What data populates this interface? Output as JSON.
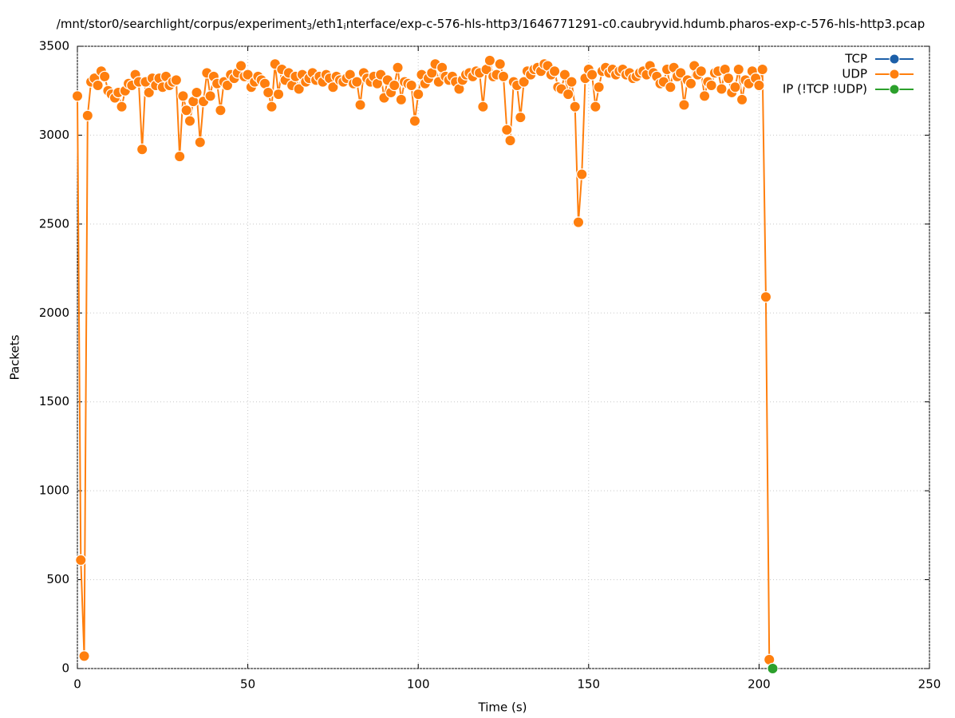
{
  "chart_data": {
    "type": "line",
    "title": [
      "/mnt/stor0/searchlight/corpus/experiment",
      "3",
      "/eth1",
      "i",
      "nterface/exp-c-576-hls-http3/1646771291-c0.caubryvid.hdumb.pharos-exp-c-576-hls-http3.pcap"
    ],
    "xlabel": "Time (s)",
    "ylabel": "Packets",
    "xlim": [
      0,
      250
    ],
    "xticks": [
      0,
      50,
      100,
      150,
      200,
      250
    ],
    "ylim": [
      0,
      3500
    ],
    "yticks": [
      0,
      500,
      1000,
      1500,
      2000,
      2500,
      3000,
      3500
    ],
    "grid": true,
    "legend": "top-right",
    "x": [
      0,
      1,
      2,
      3,
      4,
      5,
      6,
      7,
      8,
      9,
      10,
      11,
      12,
      13,
      14,
      15,
      16,
      17,
      18,
      19,
      20,
      21,
      22,
      23,
      24,
      25,
      26,
      27,
      28,
      29,
      30,
      31,
      32,
      33,
      34,
      35,
      36,
      37,
      38,
      39,
      40,
      41,
      42,
      43,
      44,
      45,
      46,
      47,
      48,
      49,
      50,
      51,
      52,
      53,
      54,
      55,
      56,
      57,
      58,
      59,
      60,
      61,
      62,
      63,
      64,
      65,
      66,
      67,
      68,
      69,
      70,
      71,
      72,
      73,
      74,
      75,
      76,
      77,
      78,
      79,
      80,
      81,
      82,
      83,
      84,
      85,
      86,
      87,
      88,
      89,
      90,
      91,
      92,
      93,
      94,
      95,
      96,
      97,
      98,
      99,
      100,
      101,
      102,
      103,
      104,
      105,
      106,
      107,
      108,
      109,
      110,
      111,
      112,
      113,
      114,
      115,
      116,
      117,
      118,
      119,
      120,
      121,
      122,
      123,
      124,
      125,
      126,
      127,
      128,
      129,
      130,
      131,
      132,
      133,
      134,
      135,
      136,
      137,
      138,
      139,
      140,
      141,
      142,
      143,
      144,
      145,
      146,
      147,
      148,
      149,
      150,
      151,
      152,
      153,
      154,
      155,
      156,
      157,
      158,
      159,
      160,
      161,
      162,
      163,
      164,
      165,
      166,
      167,
      168,
      169,
      170,
      171,
      172,
      173,
      174,
      175,
      176,
      177,
      178,
      179,
      180,
      181,
      182,
      183,
      184,
      185,
      186,
      187,
      188,
      189,
      190,
      191,
      192,
      193,
      194,
      195,
      196,
      197,
      198,
      199,
      200,
      201,
      202,
      203,
      204
    ],
    "series": [
      {
        "name": "TCP",
        "color": "#1c5fa8",
        "values": [
          null,
          null,
          null,
          null,
          null,
          null,
          null,
          null,
          null,
          null,
          null,
          null,
          null,
          null,
          null,
          null,
          null,
          null,
          null,
          null,
          null,
          null,
          null,
          null,
          null,
          null,
          null,
          null,
          null,
          null,
          null,
          null,
          null,
          null,
          null,
          null,
          null,
          null,
          null,
          null,
          null,
          null,
          null,
          null,
          null,
          null,
          null,
          null,
          null,
          null,
          null,
          null,
          null,
          null,
          null,
          null,
          null,
          null,
          null,
          null,
          null,
          null,
          null,
          null,
          null,
          null,
          null,
          null,
          null,
          null,
          null,
          null,
          null,
          null,
          null,
          null,
          null,
          null,
          null,
          null,
          null,
          null,
          null,
          null,
          null,
          null,
          null,
          null,
          null,
          null,
          null,
          null,
          null,
          null,
          null,
          null,
          null,
          null,
          null,
          null,
          null,
          null,
          null,
          null,
          null,
          null,
          null,
          null,
          null,
          null,
          null,
          null,
          null,
          null,
          null,
          null,
          null,
          null,
          null,
          null,
          null,
          null,
          null,
          null,
          null,
          null,
          null,
          null,
          null,
          null,
          null,
          null,
          null,
          null,
          null,
          null,
          null,
          null,
          null,
          null,
          null,
          null,
          null,
          null,
          null,
          null,
          null,
          null,
          null,
          null,
          null,
          null,
          null,
          null,
          null,
          null,
          null,
          null,
          null,
          null,
          null,
          null,
          null,
          null,
          null,
          null,
          null,
          null,
          null,
          null,
          null,
          null,
          null,
          null,
          null,
          null,
          null,
          null,
          null,
          null,
          null,
          null,
          null,
          null,
          null,
          null,
          null,
          null,
          null,
          null,
          null,
          null,
          null,
          null,
          null,
          null,
          null,
          null,
          null,
          null,
          null,
          null,
          null,
          null,
          null
        ]
      },
      {
        "name": "UDP",
        "color": "#ff7f0e",
        "values": [
          3220,
          610,
          70,
          3110,
          3300,
          3320,
          3280,
          3360,
          3330,
          3250,
          3230,
          3210,
          3240,
          3160,
          3250,
          3290,
          3280,
          3340,
          3300,
          2920,
          3300,
          3240,
          3320,
          3280,
          3320,
          3270,
          3330,
          3280,
          3300,
          3310,
          2880,
          3220,
          3140,
          3080,
          3190,
          3240,
          2960,
          3190,
          3350,
          3220,
          3330,
          3290,
          3140,
          3300,
          3280,
          3340,
          3320,
          3350,
          3390,
          3330,
          3340,
          3270,
          3300,
          3330,
          3310,
          3290,
          3240,
          3160,
          3400,
          3230,
          3370,
          3310,
          3350,
          3280,
          3330,
          3260,
          3340,
          3300,
          3320,
          3350,
          3310,
          3330,
          3300,
          3340,
          3320,
          3270,
          3330,
          3310,
          3300,
          3320,
          3340,
          3290,
          3300,
          3170,
          3350,
          3320,
          3300,
          3330,
          3290,
          3340,
          3210,
          3310,
          3240,
          3280,
          3380,
          3200,
          3300,
          3290,
          3280,
          3080,
          3230,
          3340,
          3290,
          3320,
          3350,
          3400,
          3300,
          3380,
          3330,
          3310,
          3330,
          3300,
          3260,
          3310,
          3340,
          3350,
          3330,
          3360,
          3350,
          3160,
          3370,
          3420,
          3330,
          3340,
          3400,
          3330,
          3030,
          2970,
          3300,
          3280,
          3100,
          3300,
          3360,
          3340,
          3370,
          3380,
          3360,
          3400,
          3390,
          3340,
          3360,
          3270,
          3260,
          3340,
          3230,
          3300,
          3160,
          2510,
          2780,
          3320,
          3370,
          3340,
          3160,
          3270,
          3360,
          3380,
          3350,
          3370,
          3340,
          3360,
          3370,
          3340,
          3350,
          3320,
          3330,
          3350,
          3360,
          3340,
          3390,
          3350,
          3330,
          3290,
          3300,
          3370,
          3270,
          3380,
          3330,
          3350,
          3170,
          3310,
          3290,
          3390,
          3340,
          3360,
          3220,
          3300,
          3280,
          3350,
          3360,
          3260,
          3370,
          3320,
          3240,
          3270,
          3370,
          3200,
          3310,
          3290,
          3360,
          3320,
          3280,
          3370,
          2090,
          50,
          null
        ]
      },
      {
        "name": "IP (!TCP  !UDP)",
        "color": "#2ca02c",
        "values": [
          null,
          null,
          null,
          null,
          null,
          null,
          null,
          null,
          null,
          null,
          null,
          null,
          null,
          null,
          null,
          null,
          null,
          null,
          null,
          null,
          null,
          null,
          null,
          null,
          null,
          null,
          null,
          null,
          null,
          null,
          null,
          null,
          null,
          null,
          null,
          null,
          null,
          null,
          null,
          null,
          null,
          null,
          null,
          null,
          null,
          null,
          null,
          null,
          null,
          null,
          null,
          null,
          null,
          null,
          null,
          null,
          null,
          null,
          null,
          null,
          null,
          null,
          null,
          null,
          null,
          null,
          null,
          null,
          null,
          null,
          null,
          null,
          null,
          null,
          null,
          null,
          null,
          null,
          null,
          null,
          null,
          null,
          null,
          null,
          null,
          null,
          null,
          null,
          null,
          null,
          null,
          null,
          null,
          null,
          null,
          null,
          null,
          null,
          null,
          null,
          null,
          null,
          null,
          null,
          null,
          null,
          null,
          null,
          null,
          null,
          null,
          null,
          null,
          null,
          null,
          null,
          null,
          null,
          null,
          null,
          null,
          null,
          null,
          null,
          null,
          null,
          null,
          null,
          null,
          null,
          null,
          null,
          null,
          null,
          null,
          null,
          null,
          null,
          null,
          null,
          null,
          null,
          null,
          null,
          null,
          null,
          null,
          null,
          null,
          null,
          null,
          null,
          null,
          null,
          null,
          null,
          null,
          null,
          null,
          null,
          null,
          null,
          null,
          null,
          null,
          null,
          null,
          null,
          null,
          null,
          null,
          null,
          null,
          null,
          null,
          null,
          null,
          null,
          null,
          null,
          null,
          null,
          null,
          null,
          null,
          null,
          null,
          null,
          null,
          null,
          null,
          null,
          null,
          null,
          null,
          null,
          null,
          null,
          null,
          null,
          null,
          null,
          null,
          null,
          0
        ]
      }
    ]
  }
}
